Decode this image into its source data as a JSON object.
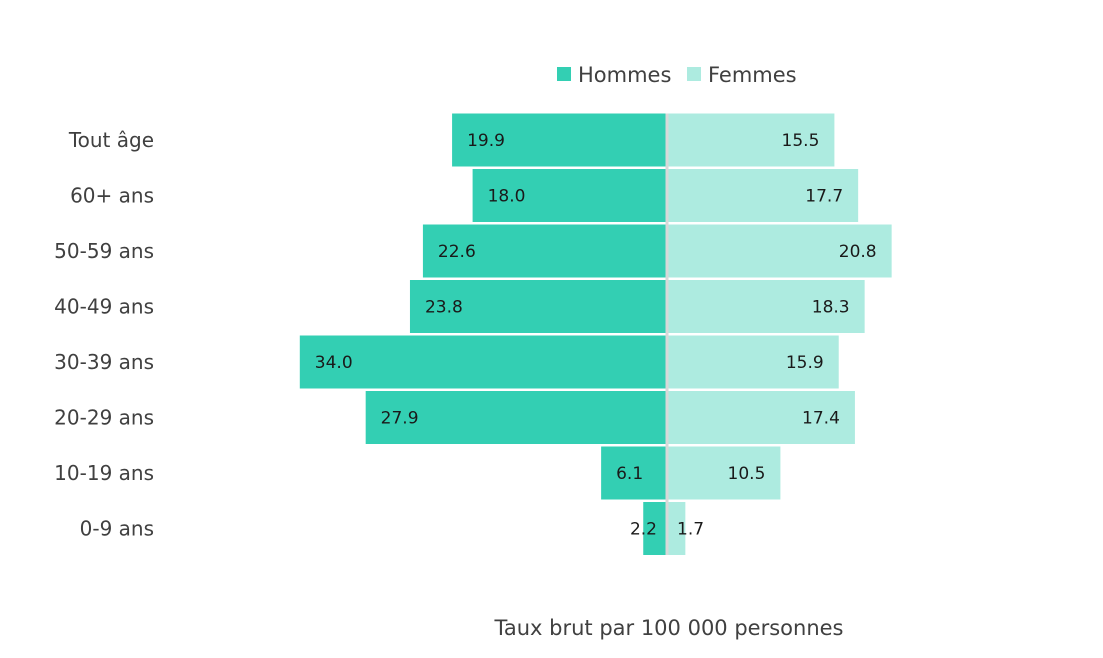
{
  "chart_data": {
    "type": "bar",
    "orientation": "horizontal",
    "layout": "population-pyramid",
    "categories": [
      "Tout âge",
      "60+ ans",
      "50-59 ans",
      "40-49 ans",
      "30-39 ans",
      "20-29 ans",
      "10-19 ans",
      "0-9 ans"
    ],
    "series": [
      {
        "name": "Hommes",
        "color": "#33cfb3",
        "side": "left",
        "values": [
          19.9,
          18.0,
          22.6,
          23.8,
          34.0,
          27.9,
          6.1,
          2.2
        ]
      },
      {
        "name": "Femmes",
        "color": "#adebe0",
        "side": "right",
        "values": [
          15.5,
          17.7,
          20.8,
          18.3,
          15.9,
          17.4,
          10.5,
          1.7
        ]
      }
    ],
    "value_labels": {
      "Hommes": [
        "19.9",
        "18.0",
        "22.6",
        "23.8",
        "34.0",
        "27.9",
        "6.1",
        "2.2"
      ],
      "Femmes": [
        "15.5",
        "17.7",
        "20.8",
        "18.3",
        "15.9",
        "17.4",
        "10.5",
        "1.7"
      ]
    },
    "xlabel": "Taux brut par 100 000 personnes",
    "legend_position": "top",
    "grid": false
  }
}
